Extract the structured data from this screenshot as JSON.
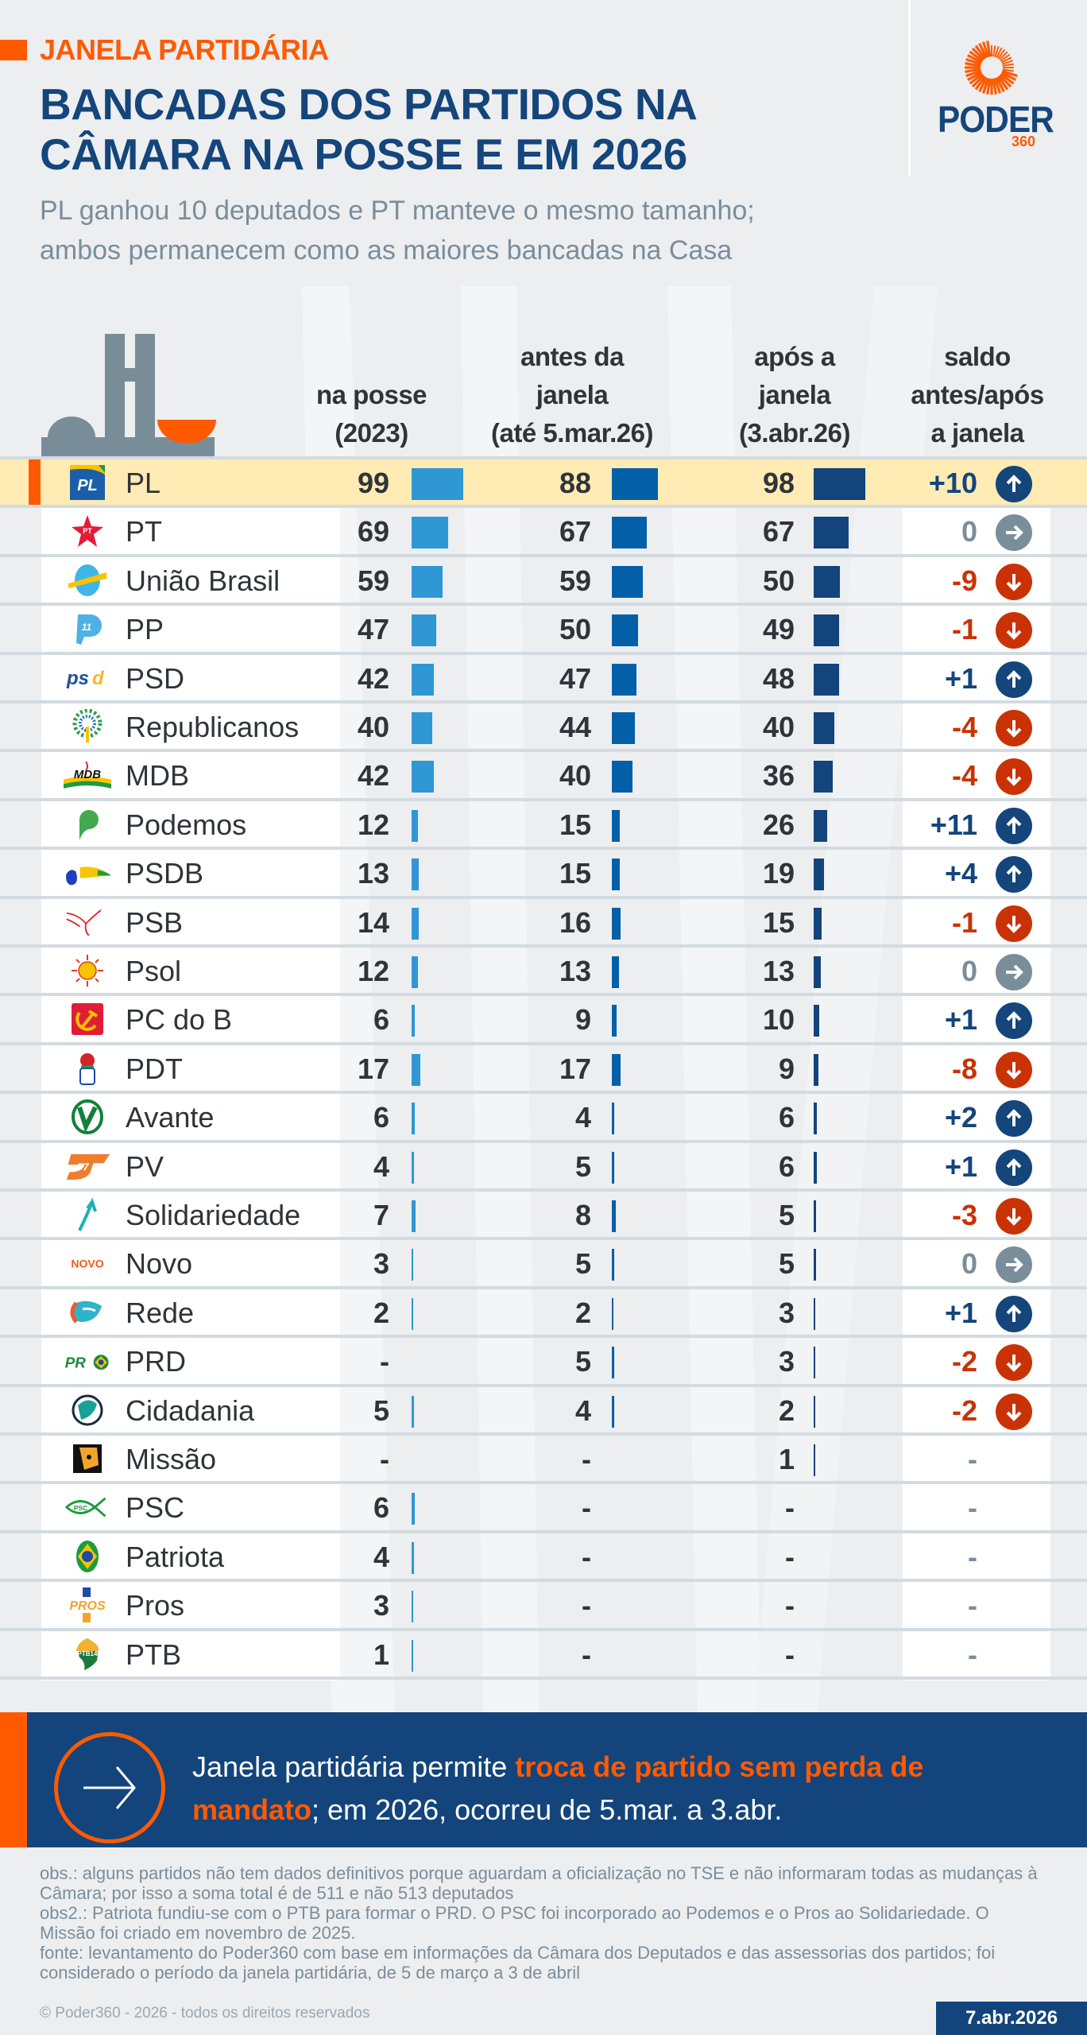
{
  "header": {
    "kicker": "JANELA PARTIDÁRIA",
    "title_line1": "BANCADAS DOS PARTIDOS NA",
    "title_line2": "CÂMARA NA POSSE E EM 2026",
    "subtitle_line1": "PL ganhou 10 deputados e PT manteve o mesmo tamanho;",
    "subtitle_line2": "ambos permanecem como as maiores bancadas na Casa"
  },
  "brand": {
    "name": "PODER",
    "suffix": "360",
    "icon": "sun-rays-icon"
  },
  "colors": {
    "accent": "#ff5a00",
    "brand_blue": "#14457b",
    "bar_posse": "#2e97d4",
    "bar_antes": "#0360a8",
    "bar_apos": "#13447b",
    "saldo_up": "#14457b",
    "saldo_down": "#c93205",
    "saldo_zero": "#7a8d9a",
    "highlight_row": "#ffebb3"
  },
  "columns": {
    "posse": [
      "na posse",
      "(2023)"
    ],
    "antes": [
      "antes da",
      "janela",
      "(até 5.mar.26)"
    ],
    "apos": [
      "após a",
      "janela",
      "(3.abr.26)"
    ],
    "saldo": [
      "saldo",
      "antes/após",
      "a janela"
    ]
  },
  "chart_data": {
    "type": "table",
    "title": "BANCADAS DOS PARTIDOS NA CÂMARA NA POSSE E EM 2026",
    "subtitle": "PL ganhou 10 deputados e PT manteve o mesmo tamanho; ambos permanecem como as maiores bancadas na Casa",
    "columns": [
      "partido",
      "na posse (2023)",
      "antes da janela (até 5.mar.26)",
      "após a janela (3.abr.26)",
      "saldo antes/após a janela"
    ],
    "highlight": "PL",
    "rows": [
      {
        "party": "PL",
        "logo": "pl-logo-icon",
        "posse": "99",
        "antes": "88",
        "apos": "98",
        "saldo": "+10",
        "trend": "up"
      },
      {
        "party": "PT",
        "logo": "pt-star-logo-icon",
        "posse": "69",
        "antes": "67",
        "apos": "67",
        "saldo": "0",
        "trend": "zero"
      },
      {
        "party": "União Brasil",
        "logo": "uniao-brasil-logo-icon",
        "posse": "59",
        "antes": "59",
        "apos": "50",
        "saldo": "-9",
        "trend": "down"
      },
      {
        "party": "PP",
        "logo": "pp-logo-icon",
        "posse": "47",
        "antes": "50",
        "apos": "49",
        "saldo": "-1",
        "trend": "down"
      },
      {
        "party": "PSD",
        "logo": "psd-logo-icon",
        "posse": "42",
        "antes": "47",
        "apos": "48",
        "saldo": "+1",
        "trend": "up"
      },
      {
        "party": "Republicanos",
        "logo": "republicanos-tree-logo-icon",
        "posse": "40",
        "antes": "44",
        "apos": "40",
        "saldo": "-4",
        "trend": "down"
      },
      {
        "party": "MDB",
        "logo": "mdb-logo-icon",
        "posse": "42",
        "antes": "40",
        "apos": "36",
        "saldo": "-4",
        "trend": "down"
      },
      {
        "party": "Podemos",
        "logo": "podemos-logo-icon",
        "posse": "12",
        "antes": "15",
        "apos": "26",
        "saldo": "+11",
        "trend": "up"
      },
      {
        "party": "PSDB",
        "logo": "psdb-toucan-logo-icon",
        "posse": "13",
        "antes": "15",
        "apos": "19",
        "saldo": "+4",
        "trend": "up"
      },
      {
        "party": "PSB",
        "logo": "psb-dove-logo-icon",
        "posse": "14",
        "antes": "16",
        "apos": "15",
        "saldo": "-1",
        "trend": "down"
      },
      {
        "party": "Psol",
        "logo": "psol-sun-logo-icon",
        "posse": "12",
        "antes": "13",
        "apos": "13",
        "saldo": "0",
        "trend": "zero"
      },
      {
        "party": "PC do B",
        "logo": "pcdob-hammer-sickle-logo-icon",
        "posse": "6",
        "antes": "9",
        "apos": "10",
        "saldo": "+1",
        "trend": "up"
      },
      {
        "party": "PDT",
        "logo": "pdt-rose-fist-logo-icon",
        "posse": "17",
        "antes": "17",
        "apos": "9",
        "saldo": "-8",
        "trend": "down"
      },
      {
        "party": "Avante",
        "logo": "avante-v-logo-icon",
        "posse": "6",
        "antes": "4",
        "apos": "6",
        "saldo": "+2",
        "trend": "up"
      },
      {
        "party": "PV",
        "logo": "pv-77-logo-icon",
        "posse": "4",
        "antes": "5",
        "apos": "6",
        "saldo": "+1",
        "trend": "up"
      },
      {
        "party": "Solidariedade",
        "logo": "solidariedade-arrow-logo-icon",
        "posse": "7",
        "antes": "8",
        "apos": "5",
        "saldo": "-3",
        "trend": "down"
      },
      {
        "party": "Novo",
        "logo": "novo-logo-icon",
        "posse": "3",
        "antes": "5",
        "apos": "5",
        "saldo": "0",
        "trend": "zero"
      },
      {
        "party": "Rede",
        "logo": "rede-logo-icon",
        "posse": "2",
        "antes": "2",
        "apos": "3",
        "saldo": "+1",
        "trend": "up"
      },
      {
        "party": "PRD",
        "logo": "prd-logo-icon",
        "posse": "-",
        "antes": "5",
        "apos": "3",
        "saldo": "-2",
        "trend": "down"
      },
      {
        "party": "Cidadania",
        "logo": "cidadania-logo-icon",
        "posse": "5",
        "antes": "4",
        "apos": "2",
        "saldo": "-2",
        "trend": "down"
      },
      {
        "party": "Missão",
        "logo": "missao-jaguar-logo-icon",
        "posse": "-",
        "antes": "-",
        "apos": "1",
        "saldo": "-",
        "trend": "none"
      },
      {
        "party": "PSC",
        "logo": "psc-fish-logo-icon",
        "posse": "6",
        "antes": "-",
        "apos": "-",
        "saldo": "-",
        "trend": "none"
      },
      {
        "party": "Patriota",
        "logo": "patriota-flag-logo-icon",
        "posse": "4",
        "antes": "-",
        "apos": "-",
        "saldo": "-",
        "trend": "none"
      },
      {
        "party": "Pros",
        "logo": "pros-logo-icon",
        "posse": "3",
        "antes": "-",
        "apos": "-",
        "saldo": "-",
        "trend": "none"
      },
      {
        "party": "PTB",
        "logo": "ptb-logo-icon",
        "posse": "1",
        "antes": "-",
        "apos": "-",
        "saldo": "-",
        "trend": "none"
      }
    ]
  },
  "banner": {
    "icon": "arrow-right-icon",
    "text_before": "Janela partidária permite ",
    "text_highlight": "troca de partido sem perda de mandato",
    "text_after": "; em 2026, ocorreu de 5.mar. a 3.abr."
  },
  "notes": {
    "obs1": "obs.: alguns partidos não tem dados definitivos porque aguardam a oficialização no TSE e não informaram todas as mudanças à Câmara; por isso a soma total é de 511 e não 513 deputados",
    "obs2": "obs2.: Patriota fundiu-se com o PTB para formar o PRD. O PSC foi incorporado ao Podemos e o Pros ao Solidariedade. O Missão foi criado em novembro de 2025.",
    "fonte": "fonte: levantamento do Poder360 com base em informações da Câmara dos Deputados e das assessorias dos partidos; foi considerado o período da janela partidária, de 5 de março a 3 de abril",
    "copyright": "© Poder360 - 2026 - todos os direitos reservados",
    "date": "7.abr.2026"
  }
}
